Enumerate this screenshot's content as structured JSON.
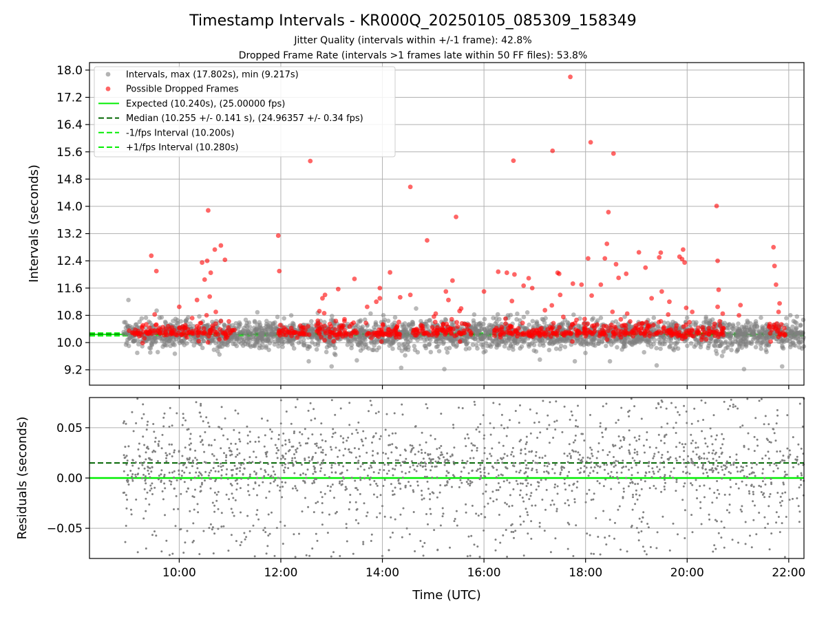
{
  "figure": {
    "title": "Timestamp Intervals - KR000Q_20250105_085309_158349",
    "subtitle_1": "Jitter Quality (intervals within +/-1 frame): 42.8%",
    "subtitle_2": "Dropped Frame Rate (intervals >1 frames late within 50 FF files): 53.8%"
  },
  "chart_data": [
    {
      "type": "scatter",
      "panel": "intervals",
      "ylabel": "Intervals (seconds)",
      "xlabel": "",
      "xlim": [
        8.233,
        22.3
      ],
      "ylim": [
        8.75,
        18.22
      ],
      "yticks": [
        9.2,
        10.0,
        10.8,
        11.6,
        12.4,
        13.2,
        14.0,
        14.8,
        15.6,
        16.4,
        17.2,
        18.0
      ],
      "ytick_labels": [
        "9.2",
        "10.0",
        "10.8",
        "11.6",
        "12.4",
        "13.2",
        "14.0",
        "14.8",
        "15.6",
        "16.4",
        "17.2",
        "18.0"
      ],
      "xticks": [
        10,
        12,
        14,
        16,
        18,
        20,
        22
      ],
      "grid": true,
      "legend_position": "upper-left",
      "legend": [
        {
          "label": "Intervals, max (17.802s), min (9.217s)",
          "kind": "marker",
          "color": "#808080"
        },
        {
          "label": "Possible Dropped Frames",
          "kind": "marker",
          "color": "#ff0000"
        },
        {
          "label": "Expected (10.240s), (25.00000 fps)",
          "kind": "solid",
          "color": "#00ee00"
        },
        {
          "label": "Median (10.255 +/- 0.141 s), (24.96357 +/- 0.34 fps)",
          "kind": "dashed",
          "color": "#006400"
        },
        {
          "label": "-1/fps Interval (10.200s)",
          "kind": "dashed",
          "color": "#00ee00"
        },
        {
          "label": "+1/fps Interval (10.280s)",
          "kind": "dashed",
          "color": "#00ee00"
        }
      ],
      "reference_lines": {
        "expected": 10.24,
        "median": 10.255,
        "minus_1_fps": 10.2,
        "plus_1_fps": 10.28
      },
      "series": [
        {
          "name": "Intervals, max (17.802s), min (9.217s)",
          "color": "#808080",
          "x_range": [
            8.9,
            22.3
          ],
          "y_center": 10.25,
          "y_spread": 0.2,
          "count": 2900,
          "extra_points": [
            [
              9.0,
              11.25
            ],
            [
              9.43,
              9.71
            ],
            [
              13.0,
              9.3
            ],
            [
              14.37,
              9.26
            ],
            [
              15.22,
              9.22
            ],
            [
              19.4,
              9.33
            ],
            [
              21.12,
              9.22
            ],
            [
              21.87,
              9.3
            ],
            [
              17.1,
              9.5
            ],
            [
              12.55,
              9.45
            ]
          ]
        },
        {
          "name": "Possible Dropped Frames",
          "color": "#ff0000",
          "clusters": [
            [
              9.0,
              9.55
            ],
            [
              9.55,
              10.2
            ],
            [
              10.25,
              11.1
            ],
            [
              11.95,
              12.55
            ],
            [
              12.55,
              13.5
            ],
            [
              13.6,
              14.35
            ],
            [
              14.55,
              15.2
            ],
            [
              15.2,
              15.75
            ],
            [
              16.2,
              16.8
            ],
            [
              16.8,
              17.3
            ],
            [
              17.3,
              17.85
            ],
            [
              17.85,
              18.35
            ],
            [
              18.35,
              18.9
            ],
            [
              18.9,
              19.45
            ],
            [
              19.45,
              19.8
            ],
            [
              19.8,
              20.45
            ],
            [
              20.45,
              20.75
            ],
            [
              21.6,
              21.95
            ]
          ],
          "outliers": [
            [
              9.45,
              12.55
            ],
            [
              9.55,
              12.1
            ],
            [
              10.0,
              11.05
            ],
            [
              10.35,
              11.25
            ],
            [
              10.45,
              12.35
            ],
            [
              10.5,
              11.85
            ],
            [
              10.55,
              12.4
            ],
            [
              10.57,
              13.88
            ],
            [
              10.62,
              12.05
            ],
            [
              10.7,
              12.73
            ],
            [
              10.82,
              12.85
            ],
            [
              10.9,
              12.43
            ],
            [
              10.6,
              11.35
            ],
            [
              10.72,
              10.9
            ],
            [
              11.95,
              13.14
            ],
            [
              11.97,
              12.1
            ],
            [
              12.58,
              15.33
            ],
            [
              12.82,
              11.3
            ],
            [
              12.87,
              11.4
            ],
            [
              13.13,
              11.57
            ],
            [
              13.45,
              11.87
            ],
            [
              13.7,
              11.05
            ],
            [
              13.88,
              11.2
            ],
            [
              13.95,
              11.6
            ],
            [
              13.95,
              11.3
            ],
            [
              14.15,
              12.06
            ],
            [
              14.35,
              11.33
            ],
            [
              14.55,
              14.57
            ],
            [
              14.55,
              11.4
            ],
            [
              14.88,
              13.0
            ],
            [
              15.05,
              10.85
            ],
            [
              15.25,
              11.5
            ],
            [
              15.3,
              11.25
            ],
            [
              15.38,
              11.82
            ],
            [
              15.45,
              13.69
            ],
            [
              15.55,
              11.0
            ],
            [
              16.0,
              11.5
            ],
            [
              16.28,
              12.08
            ],
            [
              16.45,
              12.05
            ],
            [
              16.55,
              11.22
            ],
            [
              16.58,
              15.34
            ],
            [
              16.6,
              12.0
            ],
            [
              16.78,
              11.67
            ],
            [
              16.88,
              11.89
            ],
            [
              16.95,
              11.6
            ],
            [
              17.2,
              10.95
            ],
            [
              17.45,
              12.05
            ],
            [
              17.48,
              12.02
            ],
            [
              17.5,
              11.4
            ],
            [
              17.35,
              15.63
            ],
            [
              17.7,
              17.8
            ],
            [
              17.75,
              11.73
            ],
            [
              17.92,
              11.7
            ],
            [
              18.05,
              12.47
            ],
            [
              18.1,
              15.88
            ],
            [
              18.12,
              11.38
            ],
            [
              18.3,
              11.7
            ],
            [
              18.38,
              12.47
            ],
            [
              18.42,
              12.9
            ],
            [
              18.45,
              13.83
            ],
            [
              18.55,
              15.55
            ],
            [
              18.6,
              12.3
            ],
            [
              18.65,
              11.9
            ],
            [
              18.8,
              12.02
            ],
            [
              18.82,
              10.85
            ],
            [
              19.05,
              12.65
            ],
            [
              19.18,
              12.2
            ],
            [
              19.3,
              11.3
            ],
            [
              19.45,
              12.5
            ],
            [
              19.48,
              12.64
            ],
            [
              19.5,
              11.5
            ],
            [
              19.65,
              11.2
            ],
            [
              19.85,
              12.52
            ],
            [
              19.9,
              12.45
            ],
            [
              19.92,
              12.73
            ],
            [
              19.95,
              12.35
            ],
            [
              20.1,
              10.9
            ],
            [
              20.58,
              14.01
            ],
            [
              20.6,
              12.4
            ],
            [
              20.62,
              11.55
            ],
            [
              20.6,
              11.05
            ],
            [
              20.7,
              10.85
            ],
            [
              21.05,
              11.1
            ],
            [
              21.02,
              10.8
            ],
            [
              21.7,
              12.8
            ],
            [
              21.72,
              12.25
            ],
            [
              21.75,
              11.7
            ],
            [
              21.82,
              11.15
            ],
            [
              21.8,
              10.9
            ]
          ]
        }
      ]
    },
    {
      "type": "scatter",
      "panel": "residuals",
      "ylabel": "Residuals (seconds)",
      "xlabel": "Time (UTC)",
      "xlim": [
        8.233,
        22.3
      ],
      "ylim": [
        -0.08,
        0.08
      ],
      "yticks": [
        -0.05,
        0.0,
        0.05
      ],
      "ytick_labels": [
        "−0.05",
        "0.00",
        "0.05"
      ],
      "xticks": [
        10,
        12,
        14,
        16,
        18,
        20,
        22
      ],
      "xtick_labels": [
        "10:00",
        "12:00",
        "14:00",
        "16:00",
        "18:00",
        "20:00",
        "22:00"
      ],
      "grid": true,
      "reference_lines": {
        "expected": 0.0,
        "median": 0.015
      },
      "series": [
        {
          "name": "",
          "color": "#808080",
          "x_range": [
            8.9,
            22.3
          ],
          "count": 1900
        }
      ]
    }
  ],
  "colors": {
    "gray": "#808080",
    "red": "#ff0000",
    "bright_green": "#00ee00",
    "dark_green": "#006400",
    "grid": "#b0b0b0"
  }
}
